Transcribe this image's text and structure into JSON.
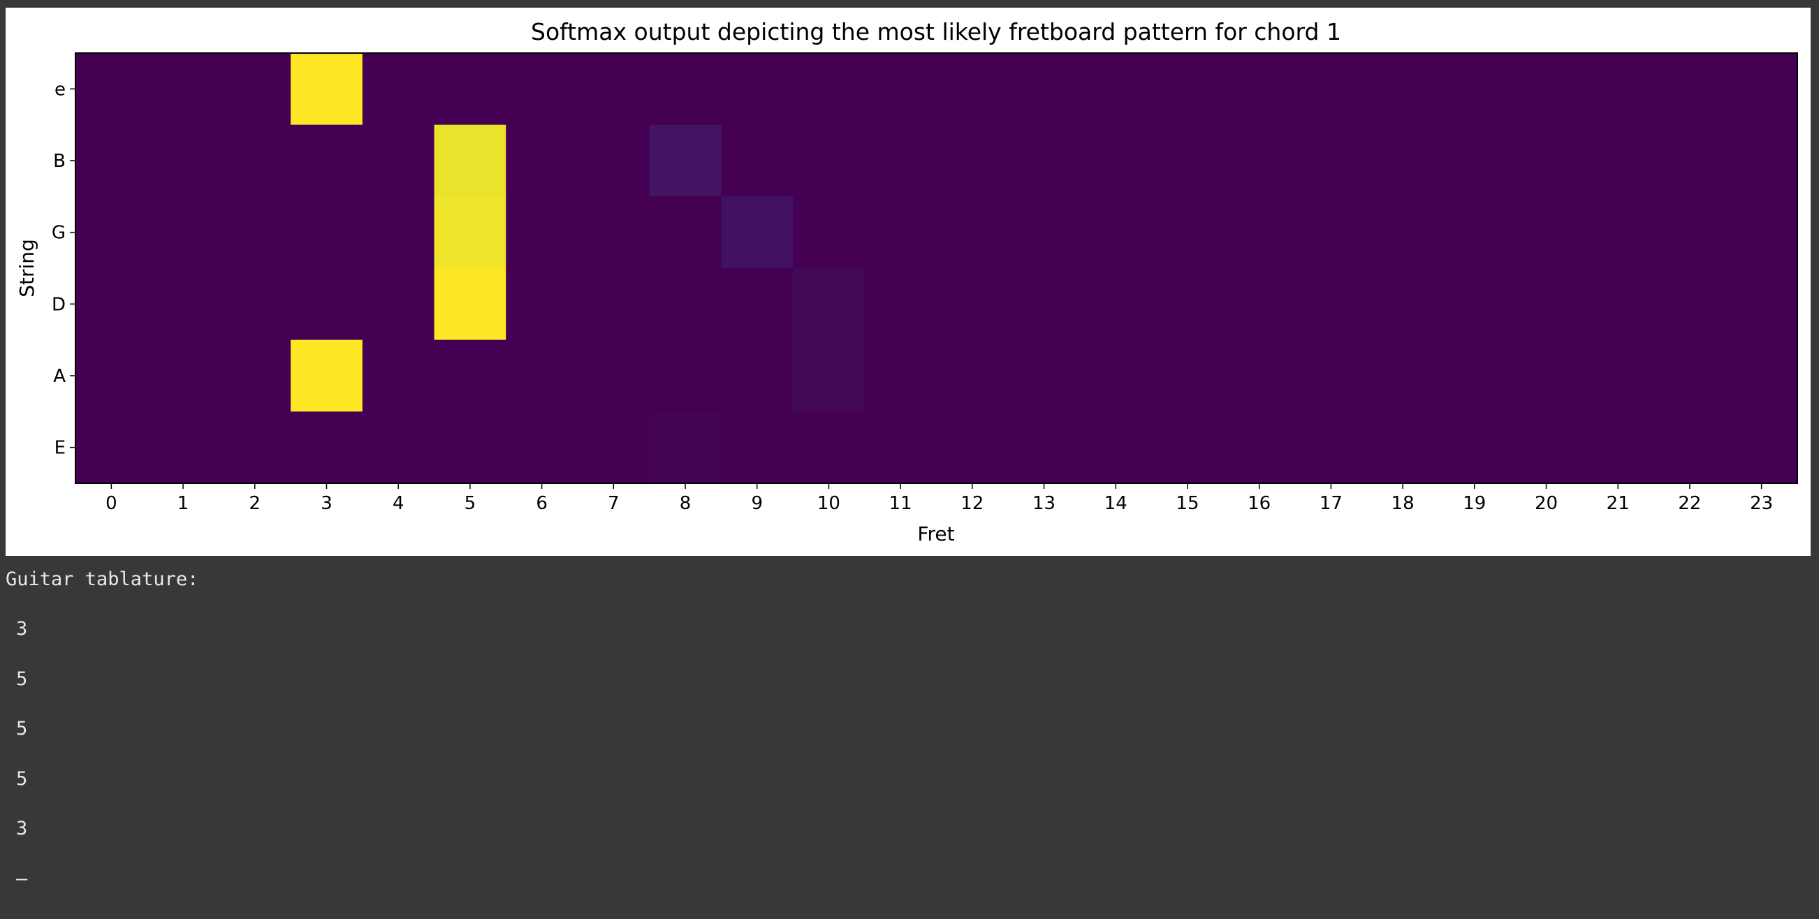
{
  "chart_data": {
    "type": "heatmap",
    "title": "Softmax output depicting the most likely fretboard pattern for chord 1",
    "xlabel": "Fret",
    "ylabel": "String",
    "x_categories": [
      "0",
      "1",
      "2",
      "3",
      "4",
      "5",
      "6",
      "7",
      "8",
      "9",
      "10",
      "11",
      "12",
      "13",
      "14",
      "15",
      "16",
      "17",
      "18",
      "19",
      "20",
      "21",
      "22",
      "23"
    ],
    "y_categories": [
      "e",
      "B",
      "G",
      "D",
      "A",
      "E"
    ],
    "colormap": "viridis",
    "grid": false,
    "values": [
      [
        0,
        0,
        0,
        1.0,
        0,
        0,
        0,
        0,
        0,
        0,
        0,
        0,
        0,
        0,
        0,
        0,
        0,
        0,
        0,
        0,
        0,
        0,
        0,
        0
      ],
      [
        0,
        0,
        0,
        0,
        0,
        0.97,
        0,
        0,
        0.06,
        0,
        0,
        0,
        0,
        0,
        0,
        0,
        0,
        0,
        0,
        0,
        0,
        0,
        0,
        0
      ],
      [
        0,
        0,
        0,
        0,
        0,
        0.98,
        0,
        0,
        0,
        0.05,
        0,
        0,
        0,
        0,
        0,
        0,
        0,
        0,
        0,
        0,
        0,
        0,
        0,
        0
      ],
      [
        0,
        0,
        0,
        0,
        0,
        1.0,
        0,
        0,
        0,
        0,
        0.02,
        0,
        0,
        0,
        0,
        0,
        0,
        0,
        0,
        0,
        0,
        0,
        0,
        0
      ],
      [
        0,
        0,
        0,
        1.0,
        0,
        0,
        0,
        0,
        0,
        0,
        0.02,
        0,
        0,
        0,
        0,
        0,
        0,
        0,
        0,
        0,
        0,
        0,
        0,
        0
      ],
      [
        0,
        0,
        0,
        0,
        0,
        0,
        0,
        0,
        0.01,
        0,
        0,
        0,
        0,
        0,
        0,
        0,
        0,
        0,
        0,
        0,
        0,
        0,
        0,
        0
      ]
    ]
  },
  "console": {
    "heading": "Guitar tablature:",
    "lines": [
      "3",
      "5",
      "5",
      "5",
      "3",
      "–"
    ]
  }
}
